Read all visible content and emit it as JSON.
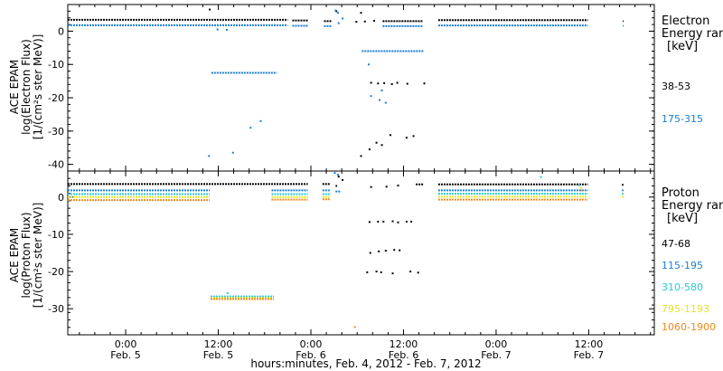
{
  "chart_data": {
    "type": "scatter",
    "xlabel": "hours:minutes, Feb.  4, 2012 - Feb.  7, 2012",
    "x_ticks": [
      {
        "time": "0:00",
        "date": "Feb. 5",
        "hour": 24
      },
      {
        "time": "12:00",
        "date": "Feb. 5",
        "hour": 36
      },
      {
        "time": "0:00",
        "date": "Feb. 6",
        "hour": 48
      },
      {
        "time": "12:00",
        "date": "Feb. 6",
        "hour": 60
      },
      {
        "time": "0:00",
        "date": "Feb. 7",
        "hour": 72
      },
      {
        "time": "12:00",
        "date": "Feb. 7",
        "hour": 84
      }
    ],
    "xlim_hours": [
      16.5,
      92.5
    ],
    "panels": [
      {
        "id": "electron",
        "ylabel": [
          "ACE EPAM",
          "log(Electron Flux)",
          "[1/(cm²s ster MeV)]"
        ],
        "ylim": [
          -42,
          8
        ],
        "yticks": [
          0,
          -10,
          -20,
          -30,
          -40
        ],
        "legend_title": [
          "Electron",
          "Energy ran",
          "[keV]"
        ],
        "series": [
          {
            "name": "38-53",
            "color": "#000000",
            "segments": [
              {
                "from": 16.5,
                "to": 45.0,
                "y": 3.4
              },
              {
                "from": 45.6,
                "to": 47.6,
                "y": 3.2
              },
              {
                "from": 49.7,
                "to": 50.7,
                "y": 3.0
              },
              {
                "from": 57.3,
                "to": 62.5,
                "y": 3.0
              },
              {
                "from": 64.5,
                "to": 83.9,
                "y": 3.3
              },
              {
                "from": 88.4,
                "to": 88.5,
                "y": 3.0
              }
            ],
            "points": [
              {
                "x": 34.9,
                "y": 6.5
              },
              {
                "x": 51.3,
                "y": 6.0
              },
              {
                "x": 54.5,
                "y": 5.5
              },
              {
                "x": 55.8,
                "y": -15.5
              },
              {
                "x": 56.7,
                "y": -15.7
              },
              {
                "x": 57.5,
                "y": -15.6
              },
              {
                "x": 58.5,
                "y": -15.9
              },
              {
                "x": 59.2,
                "y": -15.5
              },
              {
                "x": 60.5,
                "y": -15.8
              },
              {
                "x": 62.7,
                "y": -15.7
              },
              {
                "x": 54.5,
                "y": -37.5
              },
              {
                "x": 55.6,
                "y": -35.5
              },
              {
                "x": 56.5,
                "y": -33.5
              },
              {
                "x": 57.2,
                "y": -34.2
              },
              {
                "x": 58.3,
                "y": -31.2
              },
              {
                "x": 60.4,
                "y": -32.0
              },
              {
                "x": 61.3,
                "y": -31.5
              },
              {
                "x": 53.9,
                "y": 2.8
              },
              {
                "x": 55.0,
                "y": 2.9
              },
              {
                "x": 56.2,
                "y": 3.1
              }
            ]
          },
          {
            "name": "175-315",
            "color": "#1a7fd6",
            "segments": [
              {
                "from": 16.5,
                "to": 45.0,
                "y": 1.8
              },
              {
                "from": 45.6,
                "to": 47.6,
                "y": 1.6
              },
              {
                "from": 49.7,
                "to": 50.7,
                "y": 1.5
              },
              {
                "from": 57.3,
                "to": 62.5,
                "y": 1.5
              },
              {
                "from": 64.5,
                "to": 83.9,
                "y": 1.7
              },
              {
                "from": 88.4,
                "to": 88.5,
                "y": 1.6
              },
              {
                "from": 35.1,
                "to": 43.6,
                "y": -12.5
              },
              {
                "from": 54.6,
                "to": 62.6,
                "y": -6.0
              }
            ],
            "points": [
              {
                "x": 35.9,
                "y": 0.5
              },
              {
                "x": 37.1,
                "y": 0.4
              },
              {
                "x": 51.2,
                "y": 6.2
              },
              {
                "x": 51.5,
                "y": 5.5
              },
              {
                "x": 52.1,
                "y": 3.8
              },
              {
                "x": 51.6,
                "y": 2.4
              },
              {
                "x": 55.5,
                "y": -10.0
              },
              {
                "x": 57.2,
                "y": -17.8
              },
              {
                "x": 55.8,
                "y": -19.5
              },
              {
                "x": 56.9,
                "y": -20.7
              },
              {
                "x": 57.7,
                "y": -21.5
              },
              {
                "x": 41.5,
                "y": -27.0
              },
              {
                "x": 40.2,
                "y": -29.0
              },
              {
                "x": 34.8,
                "y": -37.5
              },
              {
                "x": 37.9,
                "y": -36.5
              }
            ]
          }
        ]
      },
      {
        "id": "proton",
        "ylabel": [
          "ACE EPAM",
          "log(Proton Flux)",
          "[1/(cm²s ster MeV)]"
        ],
        "ylim": [
          -37,
          7
        ],
        "yticks": [
          0,
          -10,
          -20,
          -30
        ],
        "legend_title": [
          "Proton",
          "Energy ran",
          "[keV]"
        ],
        "series": [
          {
            "name": "47-68",
            "color": "#000000",
            "segments": [
              {
                "from": 16.5,
                "to": 47.6,
                "y": 3.5
              },
              {
                "from": 49.5,
                "to": 50.5,
                "y": 3.5
              },
              {
                "from": 51.2,
                "to": 51.4,
                "y": 3.0
              },
              {
                "from": 61.6,
                "to": 62.6,
                "y": 3.4
              },
              {
                "from": 64.5,
                "to": 83.9,
                "y": 3.4
              },
              {
                "from": 88.3,
                "to": 88.5,
                "y": 3.3
              }
            ],
            "points": [
              {
                "x": 51.6,
                "y": 5.5
              },
              {
                "x": 52.1,
                "y": 4.6
              },
              {
                "x": 55.6,
                "y": -6.7
              },
              {
                "x": 56.7,
                "y": -6.6
              },
              {
                "x": 57.4,
                "y": -6.6
              },
              {
                "x": 58.6,
                "y": -6.5
              },
              {
                "x": 59.3,
                "y": -6.8
              },
              {
                "x": 60.4,
                "y": -6.6
              },
              {
                "x": 61.0,
                "y": -6.6
              },
              {
                "x": 55.7,
                "y": -15.0
              },
              {
                "x": 56.8,
                "y": -14.6
              },
              {
                "x": 57.7,
                "y": -14.4
              },
              {
                "x": 58.8,
                "y": -14.2
              },
              {
                "x": 59.5,
                "y": -14.3
              },
              {
                "x": 55.3,
                "y": -20.2
              },
              {
                "x": 56.5,
                "y": -20.0
              },
              {
                "x": 57.1,
                "y": -20.2
              },
              {
                "x": 58.6,
                "y": -20.5
              },
              {
                "x": 60.9,
                "y": -20.0
              },
              {
                "x": 61.9,
                "y": -20.3
              },
              {
                "x": 55.8,
                "y": 2.7
              },
              {
                "x": 57.8,
                "y": 2.8
              },
              {
                "x": 59.3,
                "y": 3.1
              }
            ]
          },
          {
            "name": "115-195",
            "color": "#1a7fd6",
            "segments": [
              {
                "from": 16.5,
                "to": 34.9,
                "y": 1.8
              },
              {
                "from": 42.9,
                "to": 47.6,
                "y": 1.8
              },
              {
                "from": 49.5,
                "to": 50.5,
                "y": 1.8
              },
              {
                "from": 51.2,
                "to": 51.8,
                "y": 1.5
              },
              {
                "from": 64.5,
                "to": 83.9,
                "y": 1.8
              },
              {
                "from": 88.3,
                "to": 88.5,
                "y": 1.8
              }
            ],
            "points": [
              {
                "x": 51.1,
                "y": 6.5
              },
              {
                "x": 51.5,
                "y": 6.0
              }
            ]
          },
          {
            "name": "310-580",
            "color": "#26c9d6",
            "segments": [
              {
                "from": 16.5,
                "to": 34.9,
                "y": 0.8
              },
              {
                "from": 42.9,
                "to": 47.6,
                "y": 0.8
              },
              {
                "from": 49.5,
                "to": 50.5,
                "y": 0.8
              },
              {
                "from": 64.5,
                "to": 83.9,
                "y": 0.9
              },
              {
                "from": 88.3,
                "to": 88.5,
                "y": 0.9
              },
              {
                "from": 35.0,
                "to": 43.2,
                "y": -26.7
              }
            ],
            "points": [
              {
                "x": 77.8,
                "y": 5.4
              },
              {
                "x": 82.8,
                "y": 3.2
              },
              {
                "x": 37.2,
                "y": -25.8
              }
            ]
          },
          {
            "name": "795-1193",
            "color": "#e3e32a",
            "segments": [
              {
                "from": 16.5,
                "to": 34.9,
                "y": 0.0
              },
              {
                "from": 42.9,
                "to": 47.6,
                "y": 0.0
              },
              {
                "from": 49.5,
                "to": 50.5,
                "y": 0.0
              },
              {
                "from": 64.5,
                "to": 83.9,
                "y": 0.1
              },
              {
                "from": 88.3,
                "to": 88.5,
                "y": 0.1
              },
              {
                "from": 35.0,
                "to": 43.2,
                "y": -27.1
              }
            ],
            "points": [
              {
                "x": 83.0,
                "y": 2.5
              }
            ]
          },
          {
            "name": "1060-1900",
            "color": "#f08a1c",
            "segments": [
              {
                "from": 16.5,
                "to": 34.9,
                "y": -0.8
              },
              {
                "from": 42.9,
                "to": 47.6,
                "y": -0.7
              },
              {
                "from": 49.5,
                "to": 50.5,
                "y": -0.6
              },
              {
                "from": 64.5,
                "to": 83.9,
                "y": -0.7
              },
              {
                "from": 35.0,
                "to": 43.2,
                "y": -27.4
              }
            ],
            "points": [
              {
                "x": 83.1,
                "y": 1.8
              },
              {
                "x": 53.7,
                "y": -34.9
              }
            ]
          }
        ]
      }
    ]
  }
}
